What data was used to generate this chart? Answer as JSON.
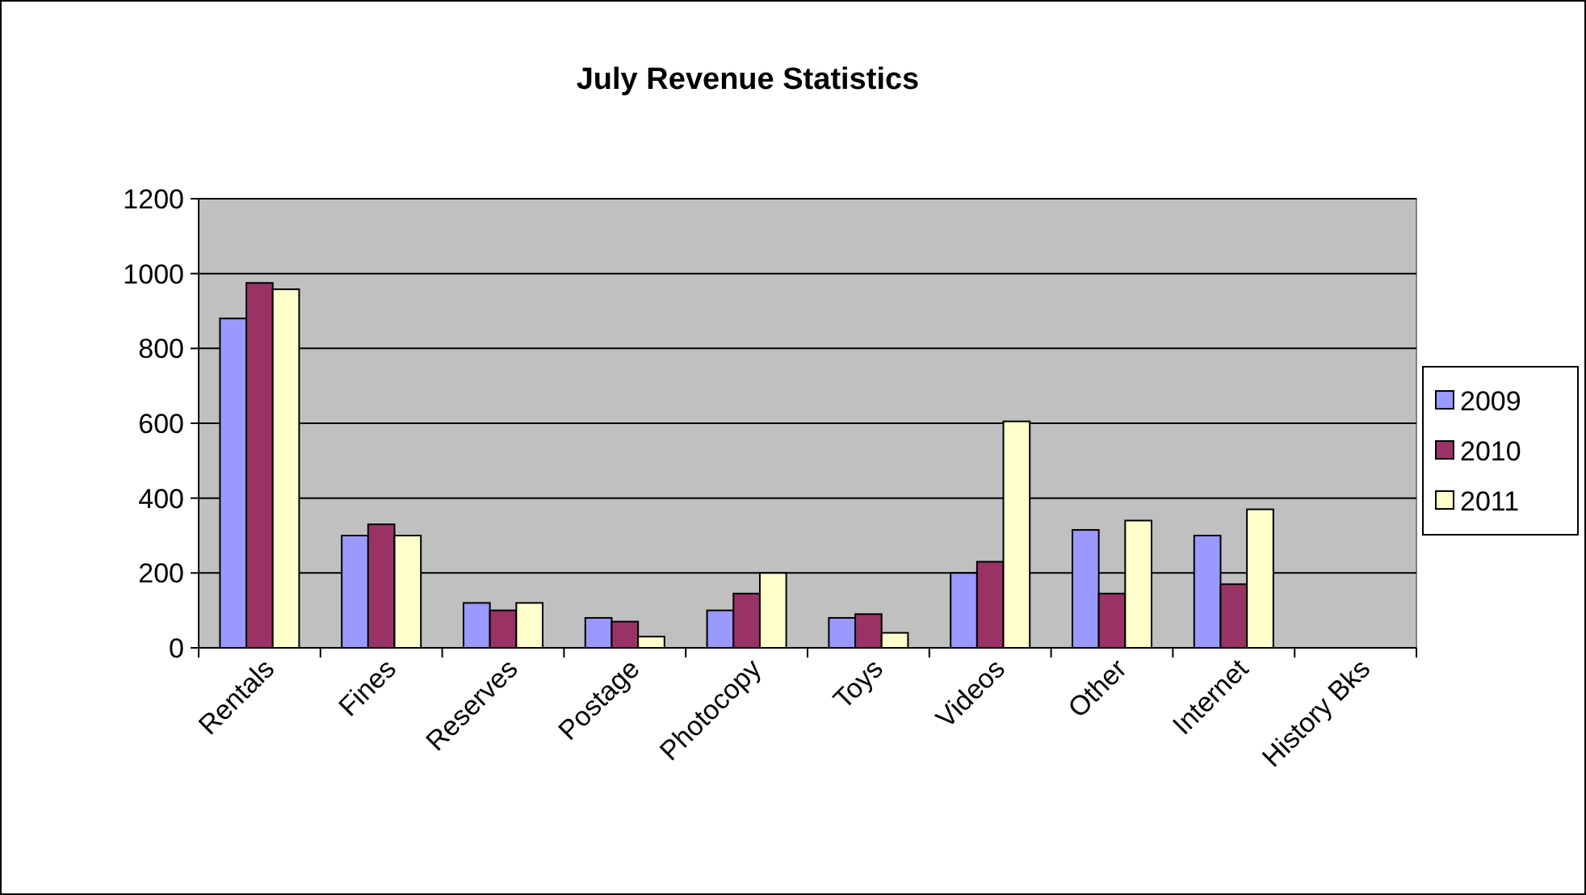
{
  "chart_data": {
    "type": "bar",
    "title": "July Revenue Statistics",
    "categories": [
      "Rentals",
      "Fines",
      "Reserves",
      "Postage",
      "Photocopy",
      "Toys",
      "Videos",
      "Other",
      "Internet",
      "History Bks"
    ],
    "series": [
      {
        "name": "2009",
        "color": "#9999ff",
        "values": [
          880,
          300,
          120,
          80,
          100,
          80,
          200,
          315,
          300,
          null
        ]
      },
      {
        "name": "2010",
        "color": "#993366",
        "values": [
          975,
          330,
          100,
          70,
          145,
          90,
          230,
          145,
          170,
          null
        ]
      },
      {
        "name": "2011",
        "color": "#ffffcc",
        "values": [
          958,
          300,
          120,
          30,
          200,
          40,
          605,
          340,
          370,
          null
        ]
      }
    ],
    "ylim": [
      0,
      1200
    ],
    "yticks": [
      0,
      200,
      400,
      600,
      800,
      1000,
      1200
    ],
    "grid": "y",
    "legend": "right"
  }
}
